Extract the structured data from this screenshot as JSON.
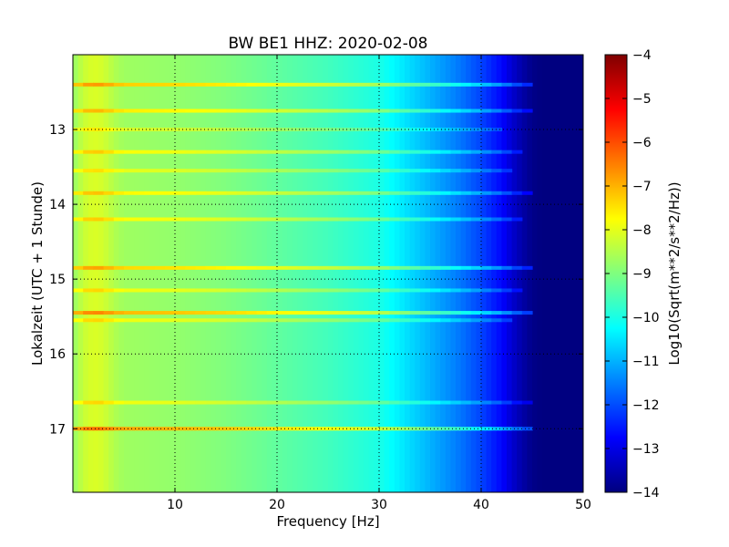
{
  "chart_data": {
    "type": "heatmap",
    "title": "BW BE1 HHZ: 2020-02-08",
    "xlabel": "Frequency [Hz]",
    "ylabel": "Lokalzeit (UTC + 1 Stunde)",
    "xlim": [
      0,
      50
    ],
    "ylim": [
      12.0,
      17.85
    ],
    "y_inverted": true,
    "x_ticks": [
      10,
      20,
      30,
      40,
      50
    ],
    "x_tick_labels": [
      "10",
      "20",
      "30",
      "40",
      "50"
    ],
    "y_ticks": [
      13,
      14,
      15,
      16,
      17
    ],
    "y_tick_labels": [
      "13",
      "14",
      "15",
      "16",
      "17"
    ],
    "grid": true,
    "colormap": "jet",
    "colorbar": {
      "label": "Log10(Sqrt(m**2/s**2/Hz))",
      "range": [
        -14,
        -4
      ],
      "ticks": [
        -4,
        -5,
        -6,
        -7,
        -8,
        -9,
        -10,
        -11,
        -12,
        -13,
        -14
      ],
      "tick_labels": [
        "−4",
        "−5",
        "−6",
        "−7",
        "−8",
        "−9",
        "−10",
        "−11",
        "−12",
        "−13",
        "−14"
      ]
    },
    "frequency_profile": {
      "frequency_hz": [
        0,
        1,
        2,
        3,
        4,
        5,
        10,
        15,
        20,
        25,
        30,
        32,
        34,
        36,
        38,
        40,
        42,
        43,
        44,
        45,
        46,
        50
      ],
      "log10_amplitude": [
        -8.8,
        -8.3,
        -8.1,
        -8.2,
        -8.5,
        -8.7,
        -8.8,
        -9.0,
        -9.3,
        -9.6,
        -10.0,
        -10.4,
        -10.8,
        -11.2,
        -11.6,
        -12.1,
        -12.7,
        -13.2,
        -13.6,
        -13.9,
        -14.0,
        -14.0
      ]
    },
    "bands": [
      {
        "time": 12.4,
        "log10_amplitude": -8.0,
        "max_frequency_hz": 45
      },
      {
        "time": 12.75,
        "log10_amplitude": -8.3,
        "max_frequency_hz": 45
      },
      {
        "time": 13.0,
        "log10_amplitude": -8.8,
        "max_frequency_hz": 42
      },
      {
        "time": 13.3,
        "log10_amplitude": -8.5,
        "max_frequency_hz": 44
      },
      {
        "time": 13.55,
        "log10_amplitude": -8.7,
        "max_frequency_hz": 43
      },
      {
        "time": 13.85,
        "log10_amplitude": -8.4,
        "max_frequency_hz": 45
      },
      {
        "time": 14.2,
        "log10_amplitude": -8.5,
        "max_frequency_hz": 44
      },
      {
        "time": 14.85,
        "log10_amplitude": -8.1,
        "max_frequency_hz": 45
      },
      {
        "time": 15.15,
        "log10_amplitude": -8.6,
        "max_frequency_hz": 44
      },
      {
        "time": 15.45,
        "log10_amplitude": -7.8,
        "max_frequency_hz": 45
      },
      {
        "time": 15.55,
        "log10_amplitude": -8.6,
        "max_frequency_hz": 43
      },
      {
        "time": 16.65,
        "log10_amplitude": -8.6,
        "max_frequency_hz": 45
      },
      {
        "time": 17.0,
        "log10_amplitude": -7.6,
        "max_frequency_hz": 45
      }
    ]
  }
}
